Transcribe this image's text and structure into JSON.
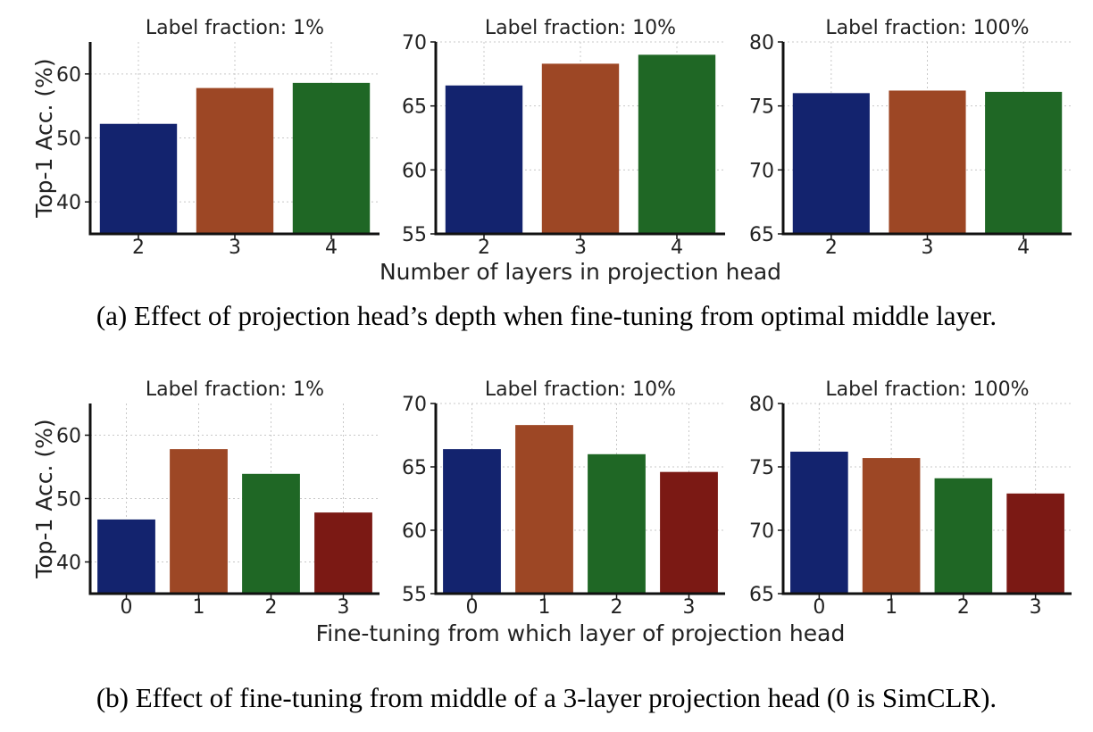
{
  "figure": {
    "caption_a": "(a)  Effect of projection head’s depth when fine-tuning from optimal middle layer.",
    "caption_b": "(b) Effect of fine-tuning from middle of a 3-layer projection head (0 is SimCLR).",
    "ylabel": "Top-1 Acc. (%)",
    "xlabel_a": "Number of layers in projection head",
    "xlabel_b": "Fine-tuning from which layer of projection head"
  },
  "colors": {
    "navy": "#13236e",
    "orange": "#9d4725",
    "green": "#1f6725",
    "red": "#7b1914"
  },
  "chart_data": [
    {
      "type": "bar",
      "row": "a",
      "title": "Label fraction: 1%",
      "categories": [
        "2",
        "3",
        "4"
      ],
      "values": [
        52.2,
        57.8,
        58.6
      ],
      "ylim": [
        35,
        65
      ],
      "yticks": [
        40,
        50,
        60
      ],
      "ylabel": "Top-1 Acc. (%)",
      "xlabel": "",
      "grid": true
    },
    {
      "type": "bar",
      "row": "a",
      "title": "Label fraction: 10%",
      "categories": [
        "2",
        "3",
        "4"
      ],
      "values": [
        66.6,
        68.3,
        69.0
      ],
      "ylim": [
        55,
        70
      ],
      "yticks": [
        55,
        60,
        65,
        70
      ],
      "ylabel": "",
      "xlabel": "Number of layers in projection head",
      "grid": true
    },
    {
      "type": "bar",
      "row": "a",
      "title": "Label fraction: 100%",
      "categories": [
        "2",
        "3",
        "4"
      ],
      "values": [
        76.0,
        76.2,
        76.1
      ],
      "ylim": [
        65,
        80
      ],
      "yticks": [
        65,
        70,
        75,
        80
      ],
      "ylabel": "",
      "xlabel": "",
      "grid": true
    },
    {
      "type": "bar",
      "row": "b",
      "title": "Label fraction: 1%",
      "categories": [
        "0",
        "1",
        "2",
        "3"
      ],
      "values": [
        46.7,
        57.8,
        53.9,
        47.8
      ],
      "ylim": [
        35,
        65
      ],
      "yticks": [
        40,
        50,
        60
      ],
      "ylabel": "Top-1 Acc. (%)",
      "xlabel": "",
      "grid": true
    },
    {
      "type": "bar",
      "row": "b",
      "title": "Label fraction: 10%",
      "categories": [
        "0",
        "1",
        "2",
        "3"
      ],
      "values": [
        66.4,
        68.3,
        66.0,
        64.6
      ],
      "ylim": [
        55,
        70
      ],
      "yticks": [
        55,
        60,
        65,
        70
      ],
      "ylabel": "",
      "xlabel": "Fine-tuning from which layer of projection head",
      "grid": true
    },
    {
      "type": "bar",
      "row": "b",
      "title": "Label fraction: 100%",
      "categories": [
        "0",
        "1",
        "2",
        "3"
      ],
      "values": [
        76.2,
        75.7,
        74.1,
        72.9
      ],
      "ylim": [
        65,
        80
      ],
      "yticks": [
        65,
        70,
        75,
        80
      ],
      "ylabel": "",
      "xlabel": "",
      "grid": true
    }
  ]
}
